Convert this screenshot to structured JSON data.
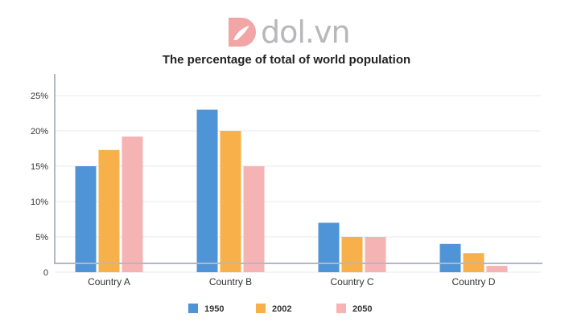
{
  "logo": {
    "text": "dol.vn"
  },
  "chart_data": {
    "type": "bar",
    "title": "The percentage of total of world population",
    "categories": [
      "Country A",
      "Country B",
      "Country C",
      "Country D"
    ],
    "series": [
      {
        "name": "1950",
        "color": "#4e94d6",
        "values": [
          15,
          23,
          7,
          4
        ]
      },
      {
        "name": "2002",
        "color": "#f7b04a",
        "values": [
          17.3,
          20,
          5,
          2.7
        ]
      },
      {
        "name": "2050",
        "color": "#f5b3b4",
        "values": [
          19.2,
          15,
          5,
          0.9
        ]
      }
    ],
    "yticks": [
      "0",
      "5%",
      "10%",
      "15%",
      "20%",
      "25%"
    ],
    "ytick_values": [
      0,
      5,
      10,
      15,
      20,
      25
    ],
    "ylim": [
      0,
      25
    ],
    "grid": true,
    "legend": "bottom"
  }
}
